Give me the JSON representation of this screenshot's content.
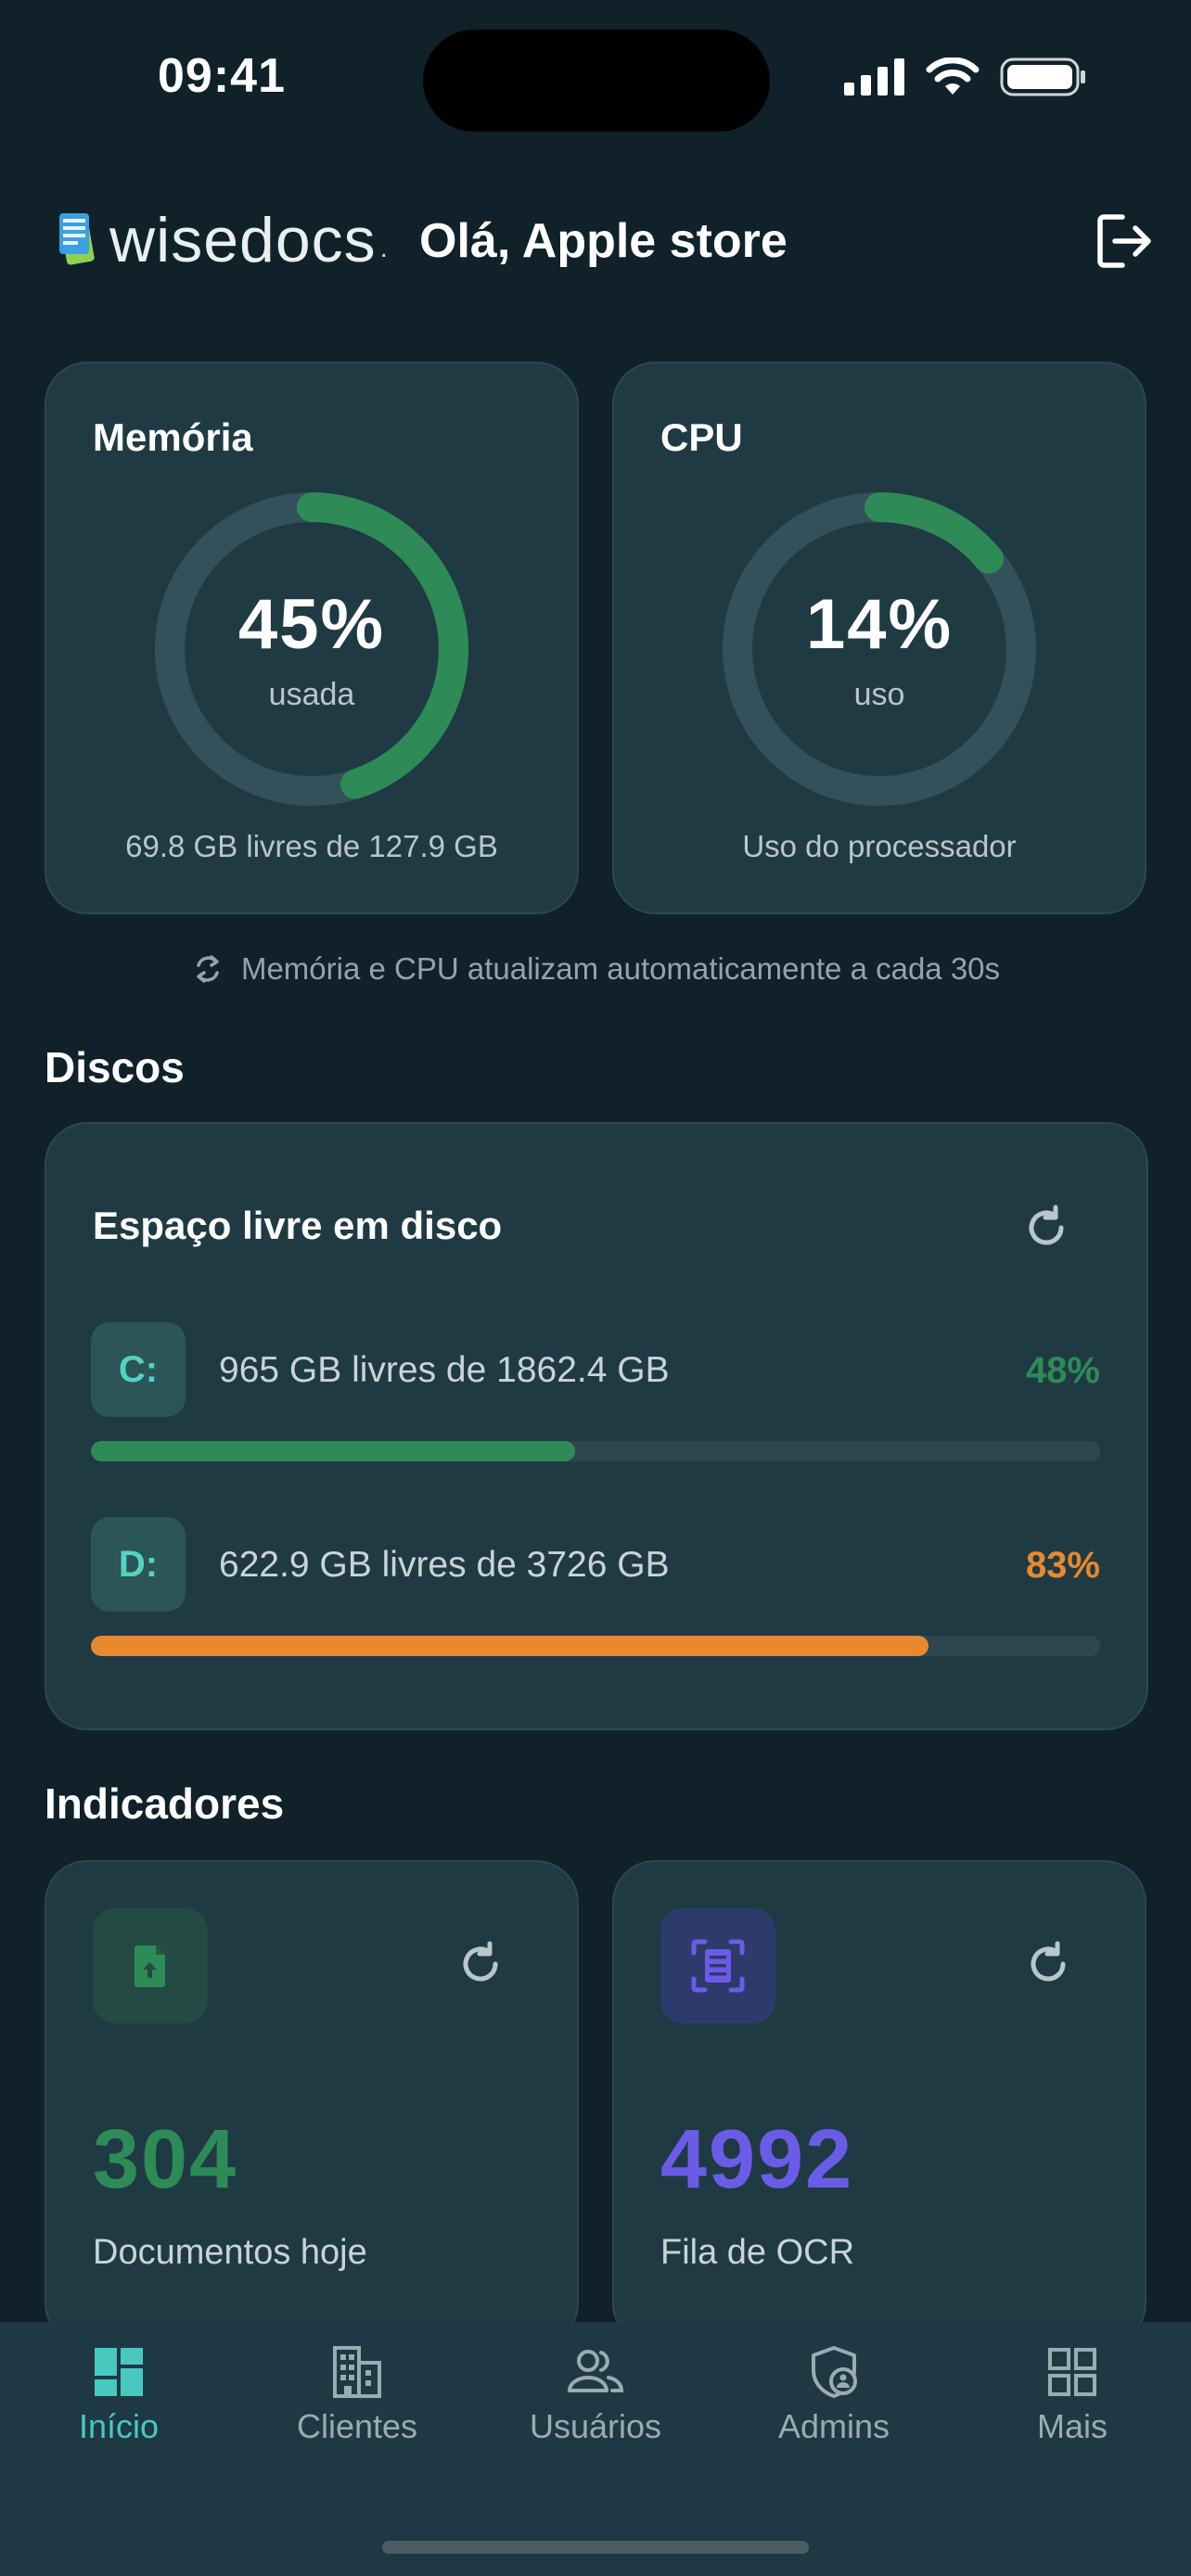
{
  "status_bar": {
    "time": "09:41"
  },
  "header": {
    "brand": "wisedocs",
    "brand_suffix": ".",
    "greeting": "Olá, Apple store"
  },
  "memory": {
    "title": "Memória",
    "percent_label": "45%",
    "percent_value": 45,
    "sub": "usada",
    "footer": "69.8 GB livres de 127.9 GB"
  },
  "cpu": {
    "title": "CPU",
    "percent_label": "14%",
    "percent_value": 14,
    "sub": "uso",
    "footer": "Uso do processador"
  },
  "refresh_note": "Memória e CPU atualizam automaticamente a cada 30s",
  "disks": {
    "section_title": "Discos",
    "card_title": "Espaço livre em disco",
    "items": [
      {
        "letter": "C:",
        "text": "965 GB livres de 1862.4 GB",
        "percent_label": "48%",
        "percent_value": 48,
        "color": "#2e8b57"
      },
      {
        "letter": "D:",
        "text": "622.9 GB livres de 3726 GB",
        "percent_label": "83%",
        "percent_value": 83,
        "color": "#e8892d"
      }
    ]
  },
  "indicators": {
    "section_title": "Indicadores",
    "items": [
      {
        "value": "304",
        "label": "Documentos hoje",
        "color": "#2e8b57",
        "icon": "file-upload-icon"
      },
      {
        "value": "4992",
        "label": "Fila de OCR",
        "color": "#6b5ce7",
        "icon": "document-scan-icon"
      }
    ]
  },
  "tabs": [
    {
      "label": "Início",
      "icon": "dashboard-icon",
      "active": true
    },
    {
      "label": "Clientes",
      "icon": "building-icon",
      "active": false
    },
    {
      "label": "Usuários",
      "icon": "users-icon",
      "active": false
    },
    {
      "label": "Admins",
      "icon": "shield-user-icon",
      "active": false
    },
    {
      "label": "Mais",
      "icon": "grid-icon",
      "active": false
    }
  ],
  "colors": {
    "background": "#10212a",
    "card": "#203a44",
    "green": "#2e8b57",
    "orange": "#e8892d",
    "purple": "#6b5ce7",
    "teal": "#47c9c0"
  }
}
